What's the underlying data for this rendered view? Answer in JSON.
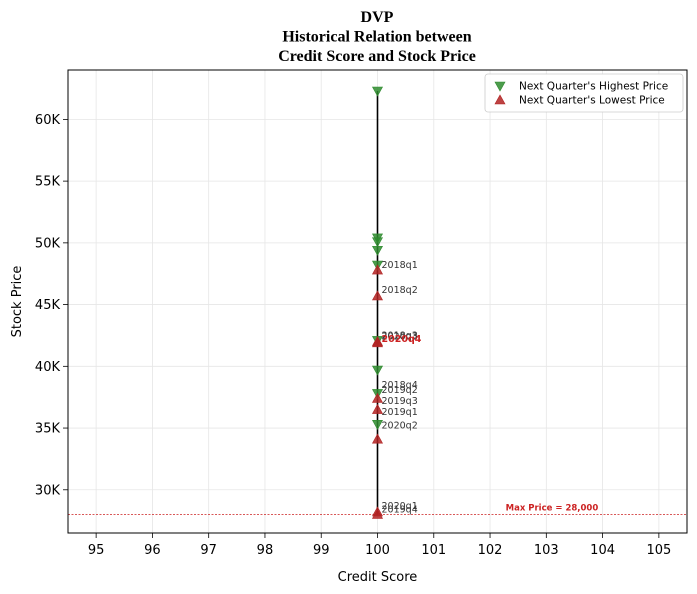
{
  "chart_data": {
    "type": "scatter",
    "title_lines": [
      "DVP",
      "Historical Relation between",
      "Credit Score and Stock Price"
    ],
    "xlabel": "Credit Score",
    "ylabel": "Stock Price",
    "xlim": [
      94.5,
      105.5
    ],
    "ylim": [
      26500,
      64000
    ],
    "x_ticks": [
      95,
      96,
      97,
      98,
      99,
      100,
      101,
      102,
      103,
      104,
      105
    ],
    "y_ticks": [
      30000,
      35000,
      40000,
      45000,
      50000,
      55000,
      60000
    ],
    "y_tick_labels": [
      "30K",
      "35K",
      "40K",
      "45K",
      "50K",
      "55K",
      "60K"
    ],
    "grid": true,
    "legend_position": "top-right",
    "colors": {
      "high": "#2e8b2e",
      "low": "#b22222",
      "line": "#000000",
      "max_line": "#cc2222"
    },
    "series": [
      {
        "name": "Next Quarter's Highest Price",
        "marker": "triangle-down",
        "points": [
          {
            "x": 100,
            "y": 62300
          },
          {
            "x": 100,
            "y": 50400
          },
          {
            "x": 100,
            "y": 50100
          },
          {
            "x": 100,
            "y": 49400
          },
          {
            "x": 100,
            "y": 48200
          },
          {
            "x": 100,
            "y": 42100
          },
          {
            "x": 100,
            "y": 39700
          },
          {
            "x": 100,
            "y": 37800
          },
          {
            "x": 100,
            "y": 35300
          }
        ]
      },
      {
        "name": "Next Quarter's Lowest Price",
        "marker": "triangle-up",
        "points": [
          {
            "x": 100,
            "y": 47800
          },
          {
            "x": 100,
            "y": 45700
          },
          {
            "x": 100,
            "y": 42000
          },
          {
            "x": 100,
            "y": 41900
          },
          {
            "x": 100,
            "y": 37400
          },
          {
            "x": 100,
            "y": 36500
          },
          {
            "x": 100,
            "y": 34100
          },
          {
            "x": 100,
            "y": 28200
          },
          {
            "x": 100,
            "y": 28000
          }
        ]
      }
    ],
    "annotations": [
      {
        "text": "2018q1",
        "x": 100,
        "y": 48200,
        "bold": false
      },
      {
        "text": "2018q2",
        "x": 100,
        "y": 46200,
        "bold": false
      },
      {
        "text": "2018q3",
        "x": 100,
        "y": 42500,
        "bold": false
      },
      {
        "text": "2020q3",
        "x": 100,
        "y": 42400,
        "bold": false
      },
      {
        "text": "2020q4",
        "x": 100,
        "y": 42200,
        "bold": true
      },
      {
        "text": "2018q4",
        "x": 100,
        "y": 38500,
        "bold": false
      },
      {
        "text": "2019q2",
        "x": 100,
        "y": 38100,
        "bold": false
      },
      {
        "text": "2019q3",
        "x": 100,
        "y": 37200,
        "bold": false
      },
      {
        "text": "2019q1",
        "x": 100,
        "y": 36300,
        "bold": false
      },
      {
        "text": "2020q2",
        "x": 100,
        "y": 35200,
        "bold": false
      },
      {
        "text": "2020q1",
        "x": 100,
        "y": 28700,
        "bold": false
      },
      {
        "text": "2019q4",
        "x": 100,
        "y": 28400,
        "bold": false
      }
    ],
    "vertical_line": {
      "x": 100,
      "y_from": 28000,
      "y_to": 62300
    },
    "max_price_line": {
      "y": 28000,
      "label": "Max Price = 28,000",
      "label_x": 103.1
    }
  }
}
